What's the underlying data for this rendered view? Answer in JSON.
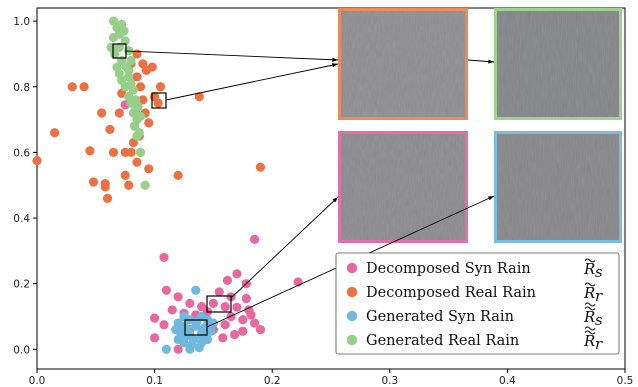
{
  "chart_data": {
    "type": "scatter",
    "title": "",
    "xlabel": "",
    "ylabel": "",
    "xlim": [
      0.0,
      0.5
    ],
    "ylim": [
      -0.06,
      1.04
    ],
    "x_ticks": [
      "0.0",
      "0.1",
      "0.2",
      "0.3",
      "0.4",
      "0.5"
    ],
    "y_ticks": [
      "0.0",
      "0.2",
      "0.4",
      "0.6",
      "0.8",
      "1.0"
    ],
    "grid": false,
    "legend_position": "lower-right",
    "series": [
      {
        "name": "Decomposed Syn Rain",
        "symbol": "R̃_s",
        "color": "#e8679f",
        "points": [
          [
            0.075,
            0.745
          ],
          [
            0.108,
            0.28
          ],
          [
            0.185,
            0.335
          ],
          [
            0.222,
            0.205
          ],
          [
            0.17,
            0.23
          ],
          [
            0.178,
            0.2
          ],
          [
            0.162,
            0.21
          ],
          [
            0.155,
            0.175
          ],
          [
            0.165,
            0.16
          ],
          [
            0.178,
            0.155
          ],
          [
            0.17,
            0.128
          ],
          [
            0.18,
            0.12
          ],
          [
            0.165,
            0.1
          ],
          [
            0.175,
            0.09
          ],
          [
            0.185,
            0.08
          ],
          [
            0.19,
            0.06
          ],
          [
            0.175,
            0.055
          ],
          [
            0.16,
            0.075
          ],
          [
            0.15,
            0.06
          ],
          [
            0.11,
            0.18
          ],
          [
            0.12,
            0.16
          ],
          [
            0.13,
            0.14
          ],
          [
            0.14,
            0.13
          ],
          [
            0.15,
            0.14
          ],
          [
            0.115,
            0.12
          ],
          [
            0.125,
            0.11
          ],
          [
            0.135,
            0.105
          ],
          [
            0.145,
            0.115
          ],
          [
            0.1,
            0.095
          ],
          [
            0.108,
            0.075
          ],
          [
            0.118,
            0.06
          ],
          [
            0.13,
            0.06
          ],
          [
            0.1,
            0.035
          ],
          [
            0.12,
            0.0
          ],
          [
            0.158,
            0.035
          ],
          [
            0.168,
            0.045
          ],
          [
            0.182,
            0.105
          ],
          [
            0.16,
            0.13
          ]
        ]
      },
      {
        "name": "Decomposed Real Rain",
        "symbol": "R̃_r",
        "color": "#ed7043",
        "points": [
          [
            0.0,
            0.575
          ],
          [
            0.015,
            0.66
          ],
          [
            0.04,
            0.8
          ],
          [
            0.045,
            0.605
          ],
          [
            0.055,
            0.72
          ],
          [
            0.065,
            0.6
          ],
          [
            0.062,
            0.67
          ],
          [
            0.07,
            0.72
          ],
          [
            0.072,
            0.78
          ],
          [
            0.075,
            0.6
          ],
          [
            0.058,
            0.495
          ],
          [
            0.058,
            0.505
          ],
          [
            0.08,
            0.87
          ],
          [
            0.085,
            0.83
          ],
          [
            0.088,
            0.8
          ],
          [
            0.09,
            0.76
          ],
          [
            0.092,
            0.72
          ],
          [
            0.095,
            0.69
          ],
          [
            0.083,
            0.68
          ],
          [
            0.087,
            0.65
          ],
          [
            0.082,
            0.63
          ],
          [
            0.088,
            0.6
          ],
          [
            0.1,
            0.77
          ],
          [
            0.103,
            0.75
          ],
          [
            0.105,
            0.8
          ],
          [
            0.098,
            0.86
          ],
          [
            0.085,
            0.9
          ],
          [
            0.09,
            0.87
          ],
          [
            0.093,
            0.85
          ],
          [
            0.08,
            0.6
          ],
          [
            0.085,
            0.57
          ],
          [
            0.095,
            0.55
          ],
          [
            0.075,
            0.53
          ],
          [
            0.078,
            0.5
          ],
          [
            0.138,
            0.77
          ],
          [
            0.19,
            0.555
          ],
          [
            0.12,
            0.53
          ],
          [
            0.06,
            0.46
          ],
          [
            0.048,
            0.51
          ],
          [
            0.03,
            0.8
          ]
        ]
      },
      {
        "name": "Generated Syn Rain",
        "symbol": "R̃̃_s",
        "color": "#6fb9de",
        "points": [
          [
            0.135,
            0.18
          ],
          [
            0.11,
            0.0
          ],
          [
            0.125,
            0.1
          ],
          [
            0.13,
            0.09
          ],
          [
            0.14,
            0.1
          ],
          [
            0.145,
            0.09
          ],
          [
            0.12,
            0.08
          ],
          [
            0.125,
            0.07
          ],
          [
            0.135,
            0.07
          ],
          [
            0.145,
            0.075
          ],
          [
            0.15,
            0.08
          ],
          [
            0.118,
            0.06
          ],
          [
            0.122,
            0.05
          ],
          [
            0.13,
            0.045
          ],
          [
            0.14,
            0.05
          ],
          [
            0.148,
            0.055
          ],
          [
            0.12,
            0.03
          ],
          [
            0.125,
            0.02
          ],
          [
            0.132,
            0.015
          ],
          [
            0.14,
            0.02
          ],
          [
            0.145,
            0.03
          ],
          [
            0.13,
            0.0
          ],
          [
            0.138,
            0.005
          ],
          [
            0.128,
            0.06
          ],
          [
            0.136,
            0.085
          ],
          [
            0.142,
            0.065
          ],
          [
            0.133,
            0.03
          ],
          [
            0.127,
            0.04
          ],
          [
            0.14,
            0.04
          ]
        ]
      },
      {
        "name": "Generated Real Rain",
        "symbol": "R̃̃_r",
        "color": "#96cf8a",
        "points": [
          [
            0.065,
            1.0
          ],
          [
            0.068,
            0.98
          ],
          [
            0.072,
            0.99
          ],
          [
            0.07,
            0.96
          ],
          [
            0.065,
            0.95
          ],
          [
            0.075,
            0.94
          ],
          [
            0.063,
            0.92
          ],
          [
            0.07,
            0.92
          ],
          [
            0.078,
            0.91
          ],
          [
            0.066,
            0.9
          ],
          [
            0.072,
            0.88
          ],
          [
            0.08,
            0.88
          ],
          [
            0.068,
            0.86
          ],
          [
            0.076,
            0.86
          ],
          [
            0.07,
            0.84
          ],
          [
            0.078,
            0.83
          ],
          [
            0.072,
            0.82
          ],
          [
            0.08,
            0.81
          ],
          [
            0.075,
            0.8
          ],
          [
            0.082,
            0.79
          ],
          [
            0.078,
            0.77
          ],
          [
            0.084,
            0.76
          ],
          [
            0.08,
            0.75
          ],
          [
            0.086,
            0.74
          ],
          [
            0.082,
            0.72
          ],
          [
            0.088,
            0.71
          ],
          [
            0.085,
            0.7
          ],
          [
            0.083,
            0.68
          ],
          [
            0.087,
            0.66
          ],
          [
            0.085,
            0.65
          ],
          [
            0.088,
            0.6
          ],
          [
            0.092,
            0.5
          ],
          [
            0.074,
            0.97
          ],
          [
            0.078,
            0.85
          ],
          [
            0.084,
            0.73
          ]
        ]
      }
    ],
    "insets": [
      {
        "name": "inset-real-decomposed",
        "border": "#ed8a5a",
        "tone": "#8e8d92"
      },
      {
        "name": "inset-real-generated",
        "border": "#9fd191",
        "tone": "#828388"
      },
      {
        "name": "inset-syn-decomposed",
        "border": "#e06fab",
        "tone": "#8a8a8d"
      },
      {
        "name": "inset-syn-generated",
        "border": "#7bbde0",
        "tone": "#858588"
      }
    ]
  }
}
